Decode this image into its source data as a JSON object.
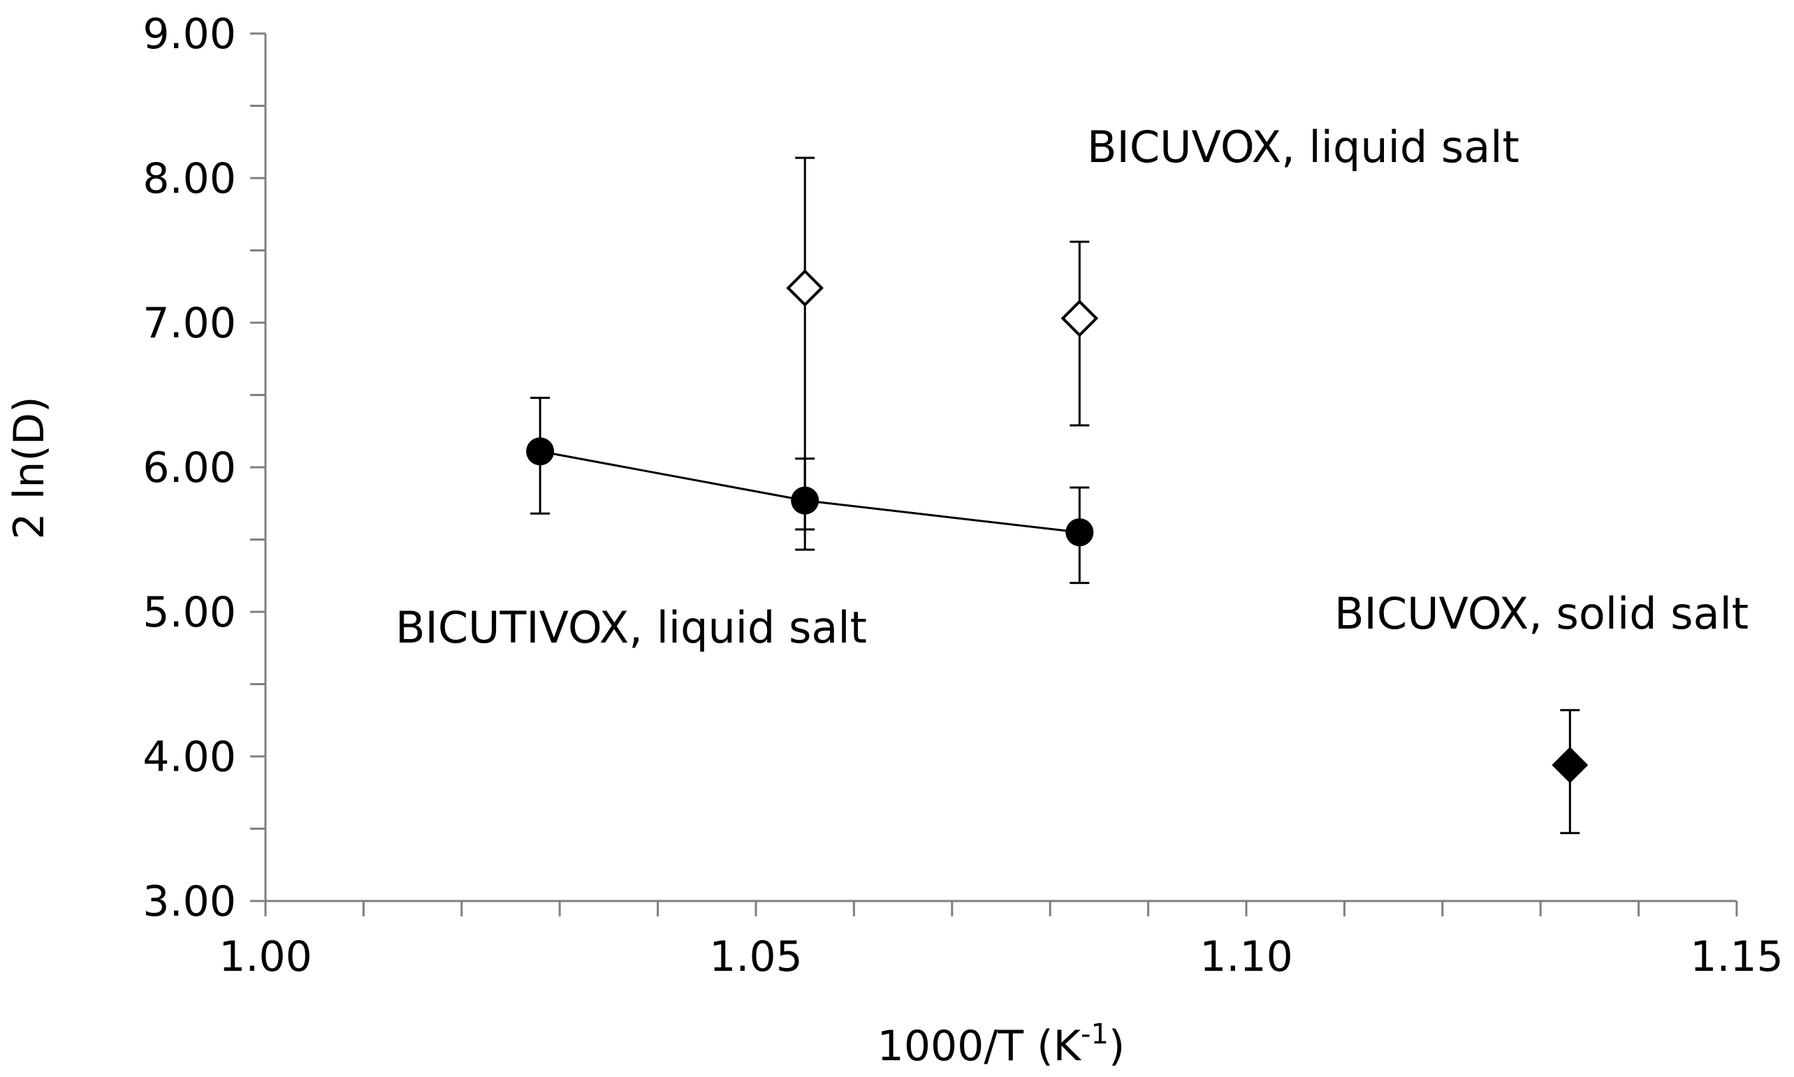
{
  "chart_data": {
    "type": "scatter",
    "title": "",
    "xlabel": "1000/T (K",
    "xlabel_sup": "-1",
    "xlabel_close": ")",
    "ylabel": "2 ln(D)",
    "xlim": [
      1.0,
      1.15
    ],
    "ylim": [
      3.0,
      9.0
    ],
    "x_ticks": [
      "1.00",
      "1.05",
      "1.10",
      "1.15"
    ],
    "y_ticks": [
      "3.00",
      "4.00",
      "5.00",
      "6.00",
      "7.00",
      "8.00",
      "9.00"
    ],
    "x_minor_step": 0.01,
    "y_minor_step": 0.5,
    "grid": false,
    "series": [
      {
        "label": "BICUTIVOX, liquid salt",
        "marker": "filled-circle",
        "line": true,
        "points": [
          {
            "x": 1.028,
            "y": 6.11,
            "err_low": 5.68,
            "err_high": 6.48
          },
          {
            "x": 1.055,
            "y": 5.77,
            "err_low": 5.43,
            "err_high": 6.06
          },
          {
            "x": 1.083,
            "y": 5.55,
            "err_low": 5.2,
            "err_high": 5.86
          }
        ]
      },
      {
        "label": "BICUVOX, liquid salt",
        "marker": "open-diamond",
        "line": false,
        "points": [
          {
            "x": 1.055,
            "y": 7.24,
            "err_low": 5.57,
            "err_high": 8.14
          },
          {
            "x": 1.083,
            "y": 7.03,
            "err_low": 6.29,
            "err_high": 7.56
          }
        ]
      },
      {
        "label": "BICUVOX, solid salt",
        "marker": "filled-diamond",
        "line": false,
        "points": [
          {
            "x": 1.133,
            "y": 3.94,
            "err_low": 3.47,
            "err_high": 4.32
          }
        ]
      }
    ],
    "annotations": [
      {
        "text": "BICUVOX, liquid salt",
        "anchor": "above BICUVOX liquid points"
      },
      {
        "text": "BICUTIVOX, liquid salt",
        "anchor": "below BICUTIVOX line"
      },
      {
        "text": "BICUVOX, solid salt",
        "anchor": "above solid salt point"
      }
    ],
    "colors": {
      "marker": "#000000",
      "axis": "#7f7f7f",
      "line": "#000000"
    }
  }
}
